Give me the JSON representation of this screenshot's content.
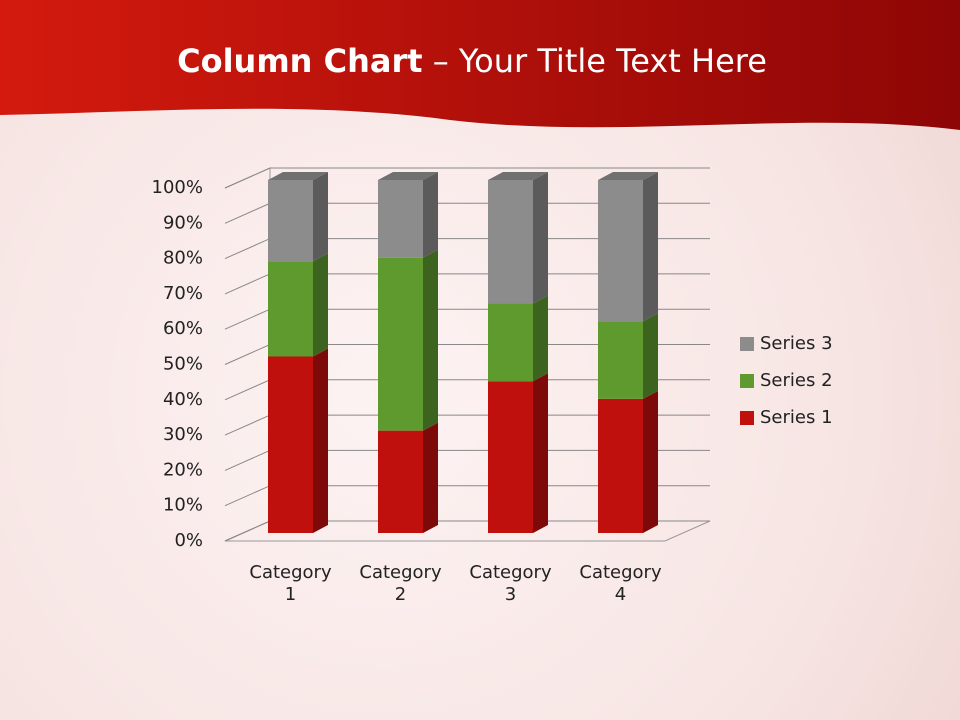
{
  "header": {
    "title_bold": "Column Chart",
    "title_rest": "– Your Title Text Here"
  },
  "chart_data": {
    "type": "stacked-bar-3d",
    "categories": [
      "Category 1",
      "Category 2",
      "Category 3",
      "Category 4"
    ],
    "series": [
      {
        "name": "Series 1",
        "color": "#c0100e",
        "values": [
          50,
          29,
          43,
          38
        ]
      },
      {
        "name": "Series 2",
        "color": "#5e9a2e",
        "values": [
          27,
          49,
          22,
          22
        ]
      },
      {
        "name": "Series 3",
        "color": "#8c8c8c",
        "values": [
          23,
          22,
          35,
          40
        ]
      }
    ],
    "ylim": [
      0,
      100
    ],
    "yticks": [
      {
        "value": 0,
        "label": "0%"
      },
      {
        "value": 10,
        "label": "10%"
      },
      {
        "value": 20,
        "label": "20%"
      },
      {
        "value": 30,
        "label": "30%"
      },
      {
        "value": 40,
        "label": "40%"
      },
      {
        "value": 50,
        "label": "50%"
      },
      {
        "value": 60,
        "label": "60%"
      },
      {
        "value": 70,
        "label": "70%"
      },
      {
        "value": 80,
        "label": "80%"
      },
      {
        "value": 90,
        "label": "90%"
      },
      {
        "value": 100,
        "label": "100%"
      }
    ],
    "grid": true,
    "legend": "right"
  }
}
